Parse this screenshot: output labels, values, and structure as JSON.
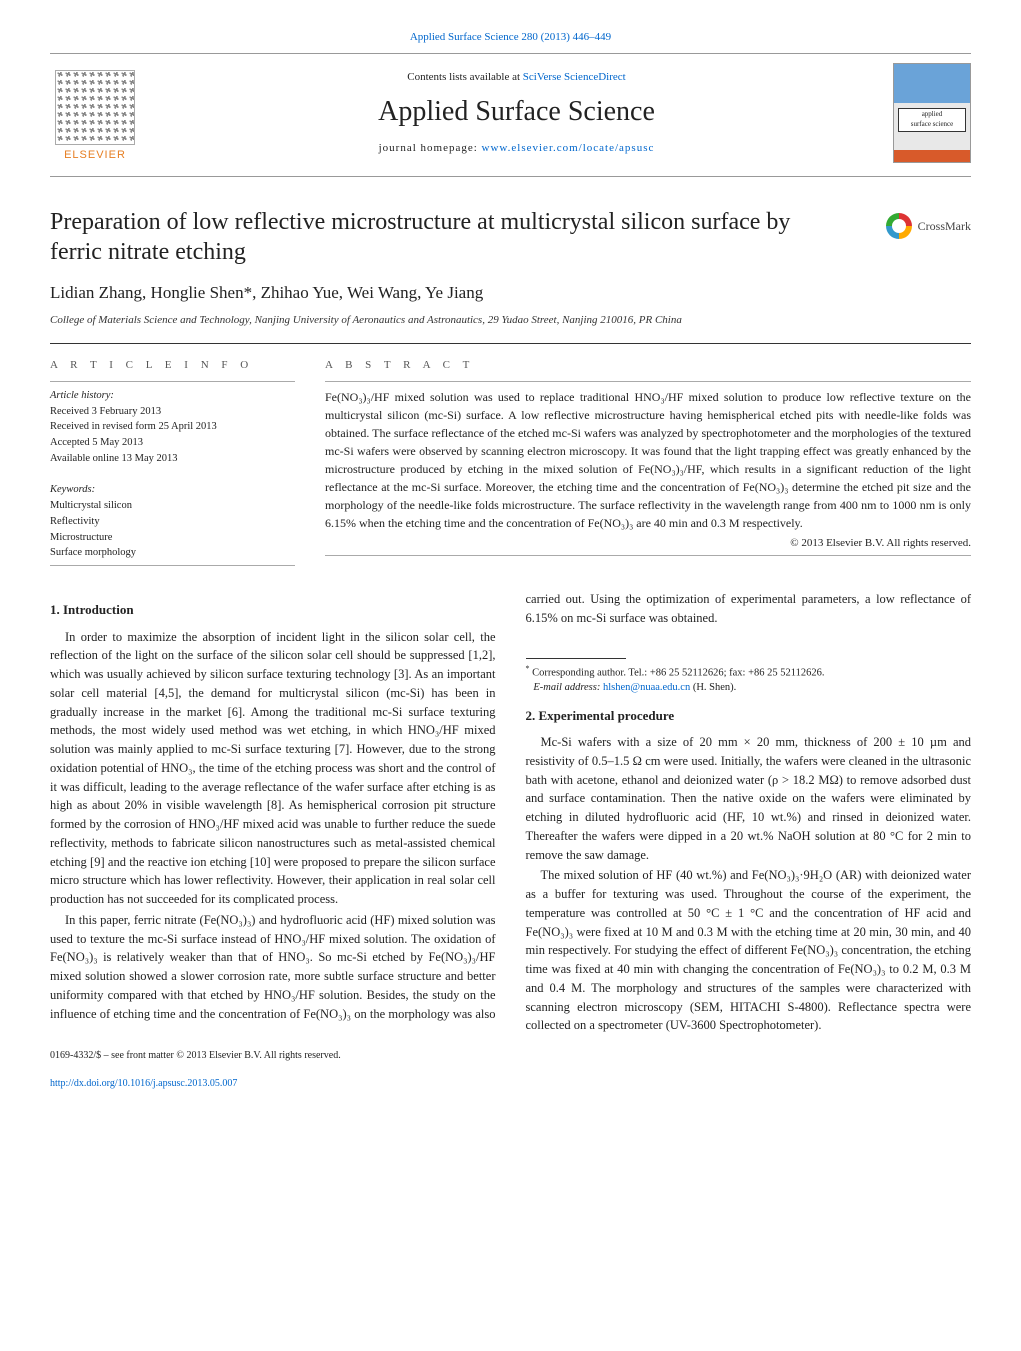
{
  "topCitation": {
    "text": "Applied Surface Science 280 (2013) 446–449",
    "href": "#"
  },
  "headerBand": {
    "contentsPrefix": "Contents lists available at ",
    "contentsLink": "SciVerse ScienceDirect",
    "journalTitle": "Applied Surface Science",
    "homepagePrefix": "journal homepage: ",
    "homepageLink": "www.elsevier.com/locate/apsusc",
    "publisher": "ELSEVIER",
    "coverSmall1": "applied",
    "coverSmall2": "surface science"
  },
  "crossmark": {
    "label": "CrossMark"
  },
  "article": {
    "title": "Preparation of low reflective microstructure at multicrystal silicon surface by ferric nitrate etching",
    "authors": "Lidian Zhang, Honglie Shen",
    "authorsSuffix": "*, Zhihao Yue, Wei Wang, Ye Jiang",
    "affiliation": "College of Materials Science and Technology, Nanjing University of Aeronautics and Astronautics, 29 Yudao Street, Nanjing 210016, PR China"
  },
  "infoHeading": "A R T I C L E   I N F O",
  "absHeading": "A B S T R A C T",
  "history": {
    "heading": "Article history:",
    "received": "Received 3 February 2013",
    "revised": "Received in revised form 25 April 2013",
    "accepted": "Accepted 5 May 2013",
    "online": "Available online 13 May 2013"
  },
  "keywords": {
    "heading": "Keywords:",
    "k1": "Multicrystal silicon",
    "k2": "Reflectivity",
    "k3": "Microstructure",
    "k4": "Surface morphology"
  },
  "abstract": {
    "text": "Fe(NO₃)₃/HF mixed solution was used to replace traditional HNO₃/HF mixed solution to produce low reflective texture on the multicrystal silicon (mc-Si) surface. A low reflective microstructure having hemispherical etched pits with needle-like folds was obtained. The surface reflectance of the etched mc-Si wafers was analyzed by spectrophotometer and the morphologies of the textured mc-Si wafers were observed by scanning electron microscopy. It was found that the light trapping effect was greatly enhanced by the microstructure produced by etching in the mixed solution of Fe(NO₃)₃/HF, which results in a significant reduction of the light reflectance at the mc-Si surface. Moreover, the etching time and the concentration of Fe(NO₃)₃ determine the etched pit size and the morphology of the needle-like folds microstructure. The surface reflectivity in the wavelength range from 400 nm to 1000 nm is only 6.15% when the etching time and the concentration of Fe(NO₃)₃ are 40 min and 0.3 M respectively.",
    "copyright": "© 2013 Elsevier B.V. All rights reserved."
  },
  "sections": {
    "intro": {
      "heading": "1.  Introduction",
      "p1": "In order to maximize the absorption of incident light in the silicon solar cell, the reflection of the light on the surface of the silicon solar cell should be suppressed [1,2], which was usually achieved by silicon surface texturing technology [3]. As an important solar cell material [4,5], the demand for multicrystal silicon (mc-Si) has been in gradually increase in the market [6]. Among the traditional mc-Si surface texturing methods, the most widely used method was wet etching, in which HNO₃/HF mixed solution was mainly applied to mc-Si surface texturing [7]. However, due to the strong oxidation potential of HNO₃, the time of the etching process was short and the control of it was difficult, leading to the average reflectance of the wafer surface after etching is as high as about 20% in visible wavelength [8]. As hemispherical corrosion pit structure formed by the corrosion of HNO₃/HF mixed acid was unable to further reduce the suede reflectivity, methods to fabricate silicon nanostructures such as metal-assisted chemical etching [9] and the reactive ion etching [10] were proposed to prepare the silicon surface micro structure which has lower reflectivity. However, their application in real solar cell production has not succeeded for its complicated process.",
      "p2": "In this paper, ferric nitrate (Fe(NO₃)₃) and hydrofluoric acid (HF) mixed solution was used to texture the mc-Si surface instead of HNO₃/HF mixed solution. The oxidation of Fe(NO₃)₃ is relatively weaker than that of HNO₃. So mc-Si etched by Fe(NO₃)₃/HF mixed solution showed a slower corrosion rate, more subtle surface structure and better uniformity compared with that etched by HNO₃/HF solution. Besides, the study on the influence of etching time and the concentration of Fe(NO₃)₃ on the morphology was also carried out. Using the optimization of experimental parameters, a low reflectance of 6.15% on mc-Si surface was obtained."
    },
    "exp": {
      "heading": "2.  Experimental procedure",
      "p1": "Mc-Si wafers with a size of 20 mm × 20 mm, thickness of 200 ± 10 µm and resistivity of 0.5–1.5 Ω cm were used. Initially, the wafers were cleaned in the ultrasonic bath with acetone, ethanol and deionized water (ρ > 18.2 MΩ) to remove adsorbed dust and surface contamination. Then the native oxide on the wafers were eliminated by etching in diluted hydrofluoric acid (HF, 10 wt.%) and rinsed in deionized water. Thereafter the wafers were dipped in a 20 wt.% NaOH solution at 80 °C for 2 min to remove the saw damage.",
      "p2": "The mixed solution of HF (40 wt.%) and Fe(NO₃)₃·9H₂O (AR) with deionized water as a buffer for texturing was used. Throughout the course of the experiment, the temperature was controlled at 50 °C ± 1 °C and the concentration of HF acid and Fe(NO₃)₃ were fixed at 10 M and 0.3 M with the etching time at 20 min, 30 min, and 40 min respectively. For studying the effect of different Fe(NO₃)₃ concentration, the etching time was fixed at 40 min with changing the concentration of Fe(NO₃)₃ to 0.2 M, 0.3 M and 0.4 M. The morphology and structures of the samples were characterized with scanning electron microscopy (SEM, HITACHI S-4800). Reflectance spectra were collected on a spectrometer (UV-3600 Spectrophotometer)."
    }
  },
  "footnote": {
    "corresponding": "Corresponding author. Tel.: +86 25 52112626; fax: +86 25 52112626.",
    "emailLabel": "E-mail address: ",
    "email": "hlshen@nuaa.edu.cn",
    "emailTail": " (H. Shen)."
  },
  "footer": {
    "line1": "0169-4332/$ – see front matter © 2013 Elsevier B.V. All rights reserved.",
    "doi": "http://dx.doi.org/10.1016/j.apsusc.2013.05.007"
  },
  "refs": {
    "r12": "[1,2]",
    "r3": "[3]",
    "r45": "[4,5]",
    "r6": "[6]",
    "r7": "[7]",
    "r8": "[8]",
    "r9": "[9]",
    "r10": "[10]"
  }
}
